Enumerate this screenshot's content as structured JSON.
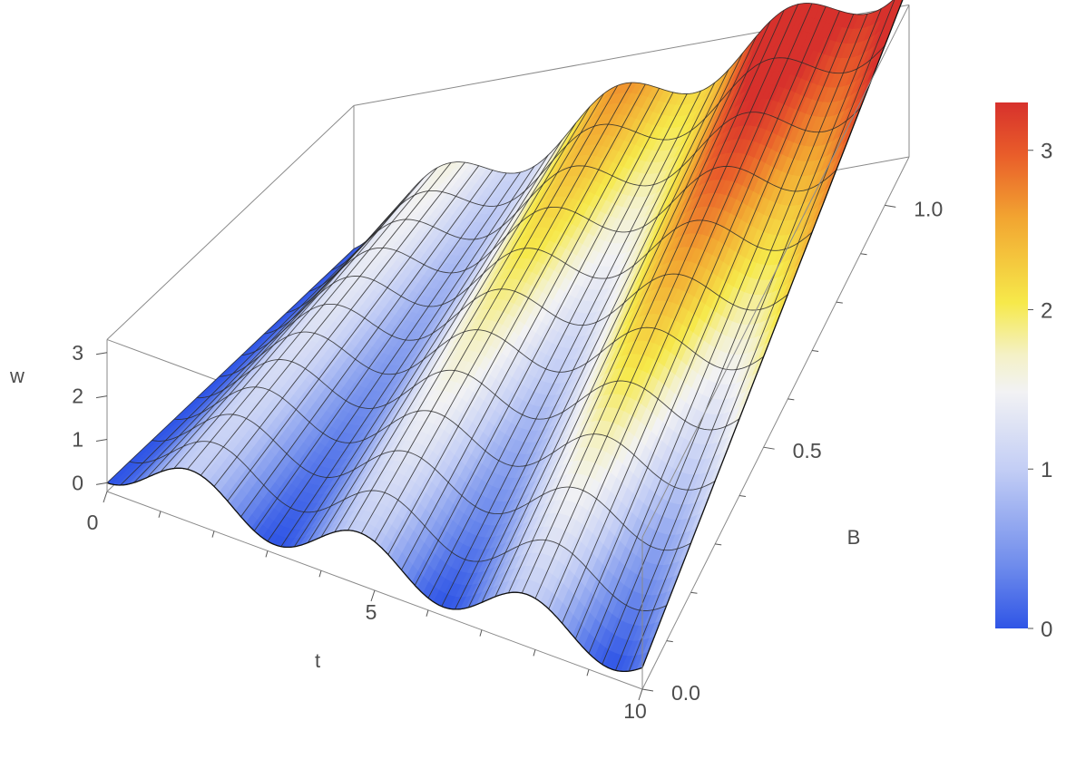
{
  "chart_data": {
    "type": "surface3d",
    "title": "",
    "x_axis": {
      "label": "t",
      "range": [
        0,
        10
      ],
      "ticks": [
        0,
        5,
        10
      ],
      "tick_labels": [
        "0",
        "5",
        "10"
      ]
    },
    "y_axis": {
      "label": "B",
      "range": [
        0,
        1.1
      ],
      "ticks": [
        0,
        0.5,
        1
      ],
      "tick_labels": [
        "0.0",
        "0.5",
        "1.0"
      ]
    },
    "z_axis": {
      "label": "w",
      "range": [
        -0.2,
        3.3
      ],
      "ticks": [
        0,
        1,
        2,
        3
      ],
      "tick_labels": [
        "0",
        "1",
        "2",
        "3"
      ]
    },
    "surface": {
      "formula": "w = B*t/pi + (1 - cos(2*t))/2 (approx.)",
      "t_samples": [
        0,
        0.25,
        0.5,
        0.75,
        1,
        1.25,
        1.5,
        1.75,
        2,
        2.25,
        2.5,
        2.75,
        3,
        3.25,
        3.5,
        3.75,
        4,
        4.25,
        4.5,
        4.75,
        5,
        5.25,
        5.5,
        5.75,
        6,
        6.25,
        6.5,
        6.75,
        7,
        7.25,
        7.5,
        7.75,
        8,
        8.25,
        8.5,
        8.75,
        9,
        9.25,
        9.5,
        9.75,
        10
      ],
      "B_samples": [
        0,
        0.1,
        0.2,
        0.3,
        0.4,
        0.5,
        0.6,
        0.7,
        0.8,
        0.9,
        1.0,
        1.1
      ],
      "notes": "w min ~0 along B=0 at t = 0, pi, 2pi, 3pi; max ~3.3 at B=1.1, t~9.4"
    },
    "colorbar": {
      "range": [
        0,
        3.3
      ],
      "ticks": [
        0,
        1,
        2,
        3
      ],
      "tick_labels": [
        "0",
        "1",
        "2",
        "3"
      ],
      "colors": [
        "#2f55e6",
        "#6f8cec",
        "#c2cdf5",
        "#f2f2f4",
        "#f4f1c6",
        "#f6e94a",
        "#f2a531",
        "#e95d2a",
        "#d7312c"
      ],
      "color_positions": [
        0,
        0.12,
        0.3,
        0.45,
        0.52,
        0.62,
        0.78,
        0.9,
        1
      ]
    },
    "box": true,
    "mesh": true,
    "legend": "colorbar-right"
  }
}
